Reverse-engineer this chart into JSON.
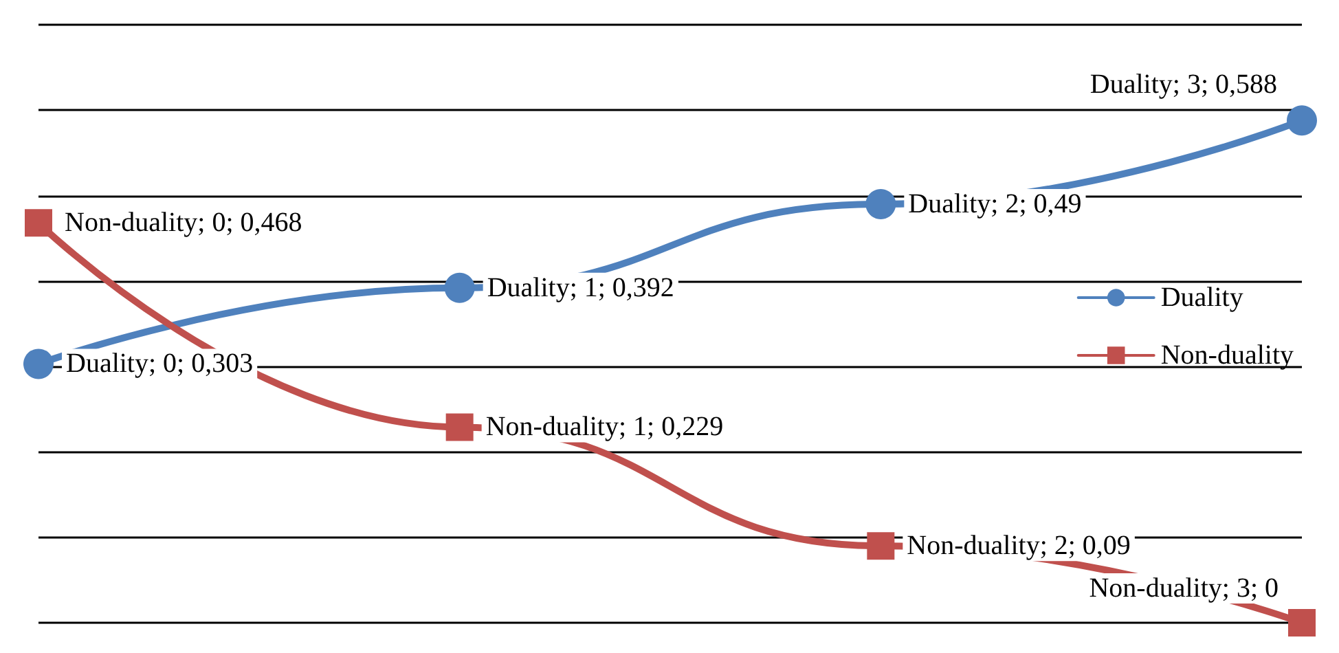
{
  "chart_data": {
    "type": "line",
    "categories": [
      null,
      null,
      null,
      null
    ],
    "series": [
      {
        "name": "Duality",
        "color": "#4f81bd",
        "marker": "circle",
        "values": [
          0.303,
          0.392,
          0.49,
          0.588
        ],
        "value_labels": [
          "Duality; 0; 0,303",
          "Duality; 1; 0,392",
          "Duality; 2; 0,49",
          "Duality; 3; 0,588"
        ]
      },
      {
        "name": "Non-duality",
        "color": "#c0504d",
        "marker": "square",
        "values": [
          0.468,
          0.229,
          0.09,
          0
        ],
        "value_labels": [
          "Non-duality; 0; 0,468",
          "Non-duality; 1; 0,229",
          "Non-duality; 2; 0,09",
          "Non-duality; 3; 0"
        ]
      }
    ],
    "ylim": [
      0,
      0.7
    ],
    "yticks": [
      {
        "value": 0,
        "label": null
      },
      {
        "value": 0.1,
        "label": null
      },
      {
        "value": 0.2,
        "label": null
      },
      {
        "value": 0.3,
        "label": null
      },
      {
        "value": 0.4,
        "label": null
      },
      {
        "value": 0.5,
        "label": null
      },
      {
        "value": 0.6,
        "label": null
      },
      {
        "value": 0.7,
        "label": null
      }
    ],
    "grid": "y",
    "legend": "right"
  }
}
